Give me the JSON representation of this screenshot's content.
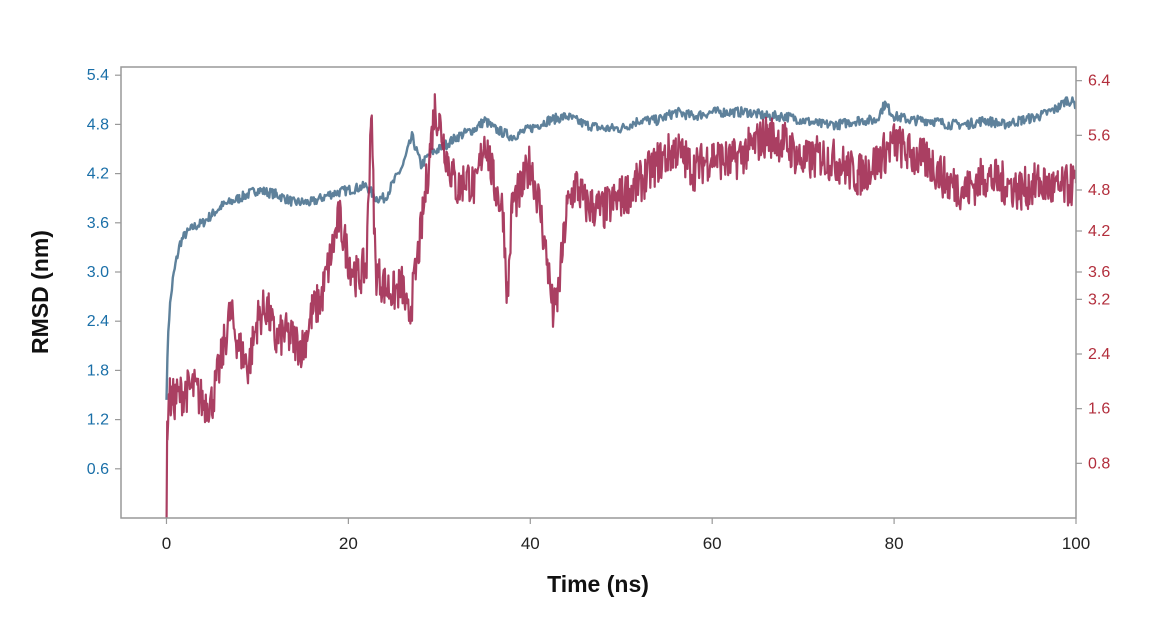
{
  "colors": {
    "left_axis": "#1a6fa8",
    "right_axis": "#b22e3c",
    "series_backbone": "#557a96",
    "series_ligand": "#a32f55",
    "frame": "#999999"
  },
  "chart_data": {
    "type": "line",
    "title": "",
    "xlabel": "Time (ns)",
    "ylabel": "RMSD (nm)",
    "y2label": "",
    "xlim": [
      -5,
      100
    ],
    "ylim": [
      0,
      5.5
    ],
    "y2lim": [
      0,
      6.6
    ],
    "xticks": [
      0,
      20,
      40,
      60,
      80,
      100
    ],
    "xtick_labels": [
      "0",
      "20",
      "40",
      "60",
      "80",
      "100"
    ],
    "yticks": [
      0.6,
      1.2,
      1.8,
      2.4,
      3.0,
      3.6,
      4.2,
      4.8,
      5.4
    ],
    "ytick_labels": [
      "0.6",
      "1.2",
      "1.8",
      "2.4",
      "3.0",
      "3.6",
      "4.2",
      "4.8",
      "5.4"
    ],
    "y2ticks": [
      0.8,
      1.6,
      2.4,
      3.2,
      3.6,
      4.2,
      4.8,
      5.6,
      6.4
    ],
    "y2tick_labels": [
      "0.8",
      "1.6",
      "2.4",
      "3.2",
      "3.6",
      "4.2",
      "4.8",
      "5.6",
      "6.4"
    ],
    "grid": false,
    "legend": "none",
    "series": [
      {
        "axis": "left",
        "x": [
          0,
          0.2,
          0.4,
          0.7,
          1,
          1.5,
          2,
          3,
          4,
          5,
          6,
          8,
          10,
          12,
          14,
          16,
          18,
          20,
          22,
          23,
          24,
          25,
          26,
          27,
          28,
          29,
          30,
          32,
          34,
          35,
          36,
          38,
          40,
          42,
          44,
          46,
          48,
          50,
          52,
          54,
          56,
          58,
          60,
          62,
          64,
          66,
          68,
          70,
          72,
          74,
          76,
          78,
          79,
          80,
          82,
          84,
          86,
          88,
          90,
          92,
          94,
          96,
          98,
          99,
          100
        ],
        "y": [
          1.5,
          2.3,
          2.6,
          2.9,
          3.1,
          3.35,
          3.45,
          3.55,
          3.6,
          3.7,
          3.8,
          3.9,
          4.0,
          3.95,
          3.85,
          3.85,
          3.95,
          4.0,
          4.05,
          3.9,
          3.9,
          4.1,
          4.3,
          4.65,
          4.3,
          4.45,
          4.5,
          4.65,
          4.75,
          4.85,
          4.75,
          4.65,
          4.75,
          4.85,
          4.9,
          4.8,
          4.75,
          4.75,
          4.85,
          4.85,
          4.95,
          4.9,
          4.95,
          4.95,
          4.95,
          4.9,
          4.9,
          4.85,
          4.8,
          4.8,
          4.85,
          4.85,
          5.05,
          4.9,
          4.85,
          4.85,
          4.8,
          4.8,
          4.85,
          4.8,
          4.85,
          4.9,
          5.0,
          5.1,
          5.05
        ]
      },
      {
        "axis": "right",
        "x": [
          0,
          0.1,
          0.3,
          0.5,
          1,
          2,
          3,
          4,
          5,
          6,
          7,
          8,
          9,
          10,
          11,
          12,
          13,
          14,
          15,
          16,
          17,
          18,
          19,
          20,
          21,
          22,
          22.5,
          23,
          24,
          25,
          26,
          26.5,
          27,
          28,
          29,
          29.5,
          30,
          31,
          32,
          33,
          34,
          35,
          36,
          37,
          37.5,
          38,
          39,
          40,
          41,
          42,
          42.5,
          43,
          44,
          45,
          46,
          48,
          50,
          52,
          54,
          56,
          58,
          60,
          62,
          64,
          66,
          68,
          70,
          72,
          74,
          76,
          78,
          80,
          82,
          84,
          86,
          88,
          90,
          92,
          94,
          96,
          98,
          100
        ],
        "y": [
          0.0,
          1.4,
          1.8,
          1.7,
          1.75,
          1.85,
          1.9,
          1.7,
          1.7,
          2.3,
          3.0,
          2.5,
          2.2,
          2.9,
          3.1,
          2.6,
          2.7,
          2.6,
          2.5,
          3.0,
          3.2,
          3.8,
          4.4,
          3.8,
          3.5,
          3.7,
          6.0,
          3.6,
          3.4,
          3.3,
          3.4,
          2.9,
          3.2,
          4.2,
          5.4,
          6.0,
          5.8,
          5.2,
          4.8,
          5.0,
          4.8,
          5.6,
          4.9,
          4.5,
          3.2,
          4.6,
          4.8,
          5.2,
          4.6,
          3.6,
          3.0,
          3.2,
          4.5,
          4.9,
          4.6,
          4.5,
          4.7,
          4.9,
          5.2,
          5.4,
          5.1,
          5.3,
          5.2,
          5.4,
          5.6,
          5.5,
          5.2,
          5.3,
          5.2,
          5.0,
          5.2,
          5.5,
          5.3,
          5.2,
          4.9,
          4.8,
          5.0,
          4.9,
          4.8,
          4.9,
          4.8,
          4.9
        ]
      }
    ]
  }
}
